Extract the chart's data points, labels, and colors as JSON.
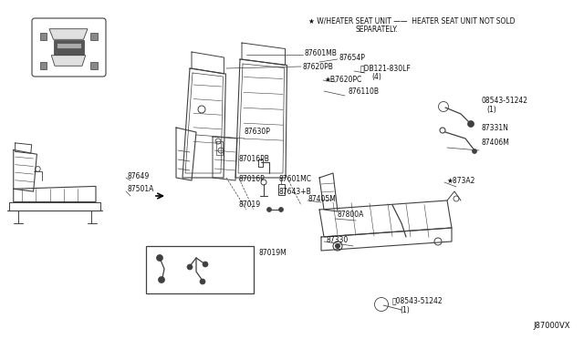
{
  "background_color": "#ffffff",
  "fig_width": 6.4,
  "fig_height": 3.72,
  "dpi": 100,
  "note_star": "★ W/HEATER SEAT UNIT",
  "note_dash": " —— ",
  "note_right": "HEATER SEAT UNIT NOT SOLD",
  "note_right2": "SEPARATELY.",
  "diagram_id": "J87000VX",
  "line_color": "#404040",
  "text_color": "#111111",
  "font_size": 5.2
}
